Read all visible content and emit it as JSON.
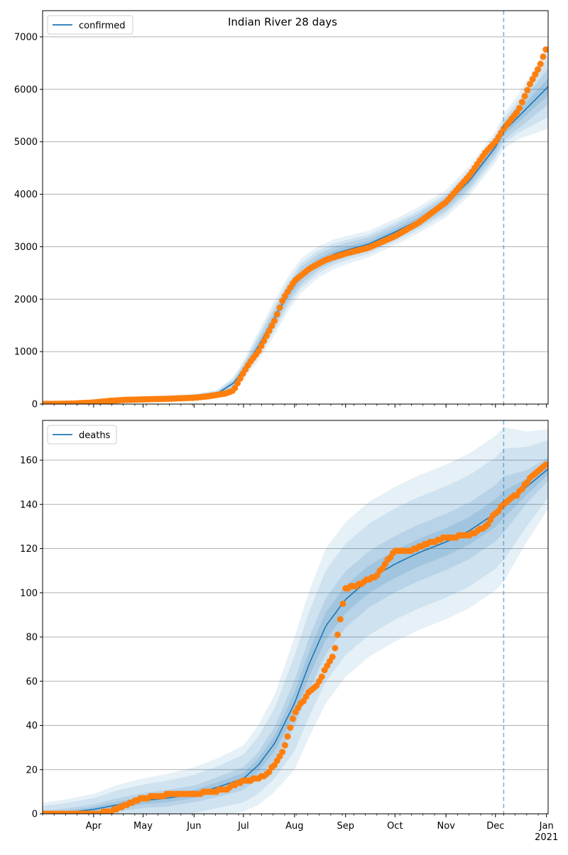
{
  "figure_title": "Indian River 28 days",
  "colors": {
    "model": "#1f77b4",
    "observed": "#ff7f0e",
    "band": "#1f77b4",
    "grid": "#b0b0b0",
    "forecast_line": "#1f77b4"
  },
  "chart_data": [
    {
      "type": "line",
      "panel": "top",
      "legend": [
        "confirmed"
      ],
      "legend_position": "top-left",
      "grid": "horizontal",
      "xlim": [
        "2020-03-01",
        "2021-01-02"
      ],
      "ylim": [
        0,
        7500
      ],
      "yticks": [
        0,
        1000,
        2000,
        3000,
        4000,
        5000,
        6000,
        7000
      ],
      "forecast_start": "2020-12-06",
      "series": [
        {
          "name": "confirmed",
          "kind": "model",
          "x": [
            "2020-03-01",
            "2020-03-15",
            "2020-04-01",
            "2020-05-01",
            "2020-06-01",
            "2020-06-15",
            "2020-06-25",
            "2020-07-01",
            "2020-07-10",
            "2020-07-20",
            "2020-07-28",
            "2020-08-05",
            "2020-08-15",
            "2020-08-25",
            "2020-09-01",
            "2020-09-15",
            "2020-10-01",
            "2020-10-15",
            "2020-11-01",
            "2020-11-15",
            "2020-12-01",
            "2020-12-06",
            "2020-12-15",
            "2021-01-02"
          ],
          "y": [
            5,
            10,
            40,
            100,
            140,
            200,
            400,
            650,
            1100,
            1650,
            2100,
            2450,
            2700,
            2860,
            2930,
            3050,
            3280,
            3500,
            3820,
            4250,
            4900,
            5200,
            5480,
            6050
          ],
          "bands": [
            [
              3,
              2
            ],
            [
              8,
              5
            ],
            [
              15,
              10
            ],
            [
              35,
              25
            ],
            [
              55,
              40
            ],
            [
              70,
              50
            ],
            [
              120,
              80
            ],
            [
              180,
              120
            ],
            [
              280,
              190
            ],
            [
              330,
              220
            ],
            [
              330,
              220
            ],
            [
              330,
              220
            ],
            [
              300,
              200
            ],
            [
              280,
              190
            ],
            [
              270,
              180
            ],
            [
              250,
              170
            ],
            [
              250,
              170
            ],
            [
              250,
              170
            ],
            [
              260,
              180
            ],
            [
              280,
              190
            ],
            [
              300,
              200
            ],
            [
              330,
              220
            ],
            [
              430,
              300
            ],
            [
              800,
              450
            ]
          ]
        },
        {
          "name": "",
          "kind": "observed",
          "x": [
            "2020-03-01",
            "2020-03-20",
            "2020-04-01",
            "2020-04-10",
            "2020-04-20",
            "2020-05-01",
            "2020-05-15",
            "2020-06-01",
            "2020-06-10",
            "2020-06-20",
            "2020-06-25",
            "2020-07-01",
            "2020-07-05",
            "2020-07-10",
            "2020-07-15",
            "2020-07-20",
            "2020-07-25",
            "2020-08-01",
            "2020-08-10",
            "2020-08-20",
            "2020-09-01",
            "2020-09-15",
            "2020-10-01",
            "2020-10-15",
            "2020-11-01",
            "2020-11-15",
            "2020-11-25",
            "2020-12-01",
            "2020-12-06",
            "2020-12-15",
            "2020-12-22",
            "2020-12-28",
            "2021-01-02"
          ],
          "y": [
            2,
            10,
            30,
            60,
            80,
            90,
            100,
            120,
            150,
            200,
            260,
            600,
            800,
            1000,
            1300,
            1600,
            2000,
            2350,
            2580,
            2750,
            2870,
            2980,
            3200,
            3450,
            3850,
            4350,
            4800,
            5000,
            5250,
            5600,
            6100,
            6450,
            6880
          ]
        }
      ]
    },
    {
      "type": "line",
      "panel": "bottom",
      "legend": [
        "deaths"
      ],
      "legend_position": "top-left",
      "grid": "horizontal",
      "xlim": [
        "2020-03-01",
        "2021-01-02"
      ],
      "ylim": [
        0,
        178
      ],
      "yticks": [
        0,
        20,
        40,
        60,
        80,
        100,
        120,
        140,
        160
      ],
      "xticks": [
        "Apr",
        "May",
        "Jun",
        "Jul",
        "Aug",
        "Sep",
        "Oct",
        "Nov",
        "Dec",
        "Jan"
      ],
      "xtick_year": "2021",
      "forecast_start": "2020-12-06",
      "series": [
        {
          "name": "deaths",
          "kind": "model",
          "x": [
            "2020-03-01",
            "2020-03-15",
            "2020-04-01",
            "2020-04-15",
            "2020-05-01",
            "2020-05-15",
            "2020-06-01",
            "2020-06-15",
            "2020-07-01",
            "2020-07-10",
            "2020-07-20",
            "2020-08-01",
            "2020-08-10",
            "2020-08-20",
            "2020-09-01",
            "2020-09-15",
            "2020-10-01",
            "2020-10-15",
            "2020-11-01",
            "2020-11-15",
            "2020-12-01",
            "2020-12-06",
            "2020-12-20",
            "2021-01-02"
          ],
          "y": [
            0,
            0.5,
            2,
            4,
            6,
            7,
            9,
            12,
            16,
            22,
            32,
            50,
            68,
            85,
            97,
            106,
            113,
            118,
            123,
            128,
            136,
            140,
            148,
            156
          ],
          "bands": [
            [
              5,
              2
            ],
            [
              6,
              2.5
            ],
            [
              7,
              3
            ],
            [
              9,
              4
            ],
            [
              10,
              4.5
            ],
            [
              11,
              5
            ],
            [
              12,
              5
            ],
            [
              13,
              6
            ],
            [
              15,
              7
            ],
            [
              18,
              8
            ],
            [
              22,
              10
            ],
            [
              30,
              14
            ],
            [
              33,
              16
            ],
            [
              35,
              17
            ],
            [
              35,
              17
            ],
            [
              35,
              17
            ],
            [
              35,
              17
            ],
            [
              35,
              17
            ],
            [
              35,
              17
            ],
            [
              35,
              17
            ],
            [
              35,
              17
            ],
            [
              35,
              17
            ],
            [
              25,
              10
            ],
            [
              18,
              7
            ]
          ]
        },
        {
          "name": "",
          "kind": "observed",
          "x": [
            "2020-03-01",
            "2020-04-01",
            "2020-04-10",
            "2020-04-20",
            "2020-05-01",
            "2020-05-10",
            "2020-05-20",
            "2020-06-01",
            "2020-06-10",
            "2020-06-20",
            "2020-07-01",
            "2020-07-10",
            "2020-07-15",
            "2020-07-20",
            "2020-07-25",
            "2020-08-01",
            "2020-08-05",
            "2020-08-10",
            "2020-08-15",
            "2020-08-20",
            "2020-08-25",
            "2020-09-01",
            "2020-09-10",
            "2020-09-20",
            "2020-10-01",
            "2020-10-10",
            "2020-10-20",
            "2020-11-01",
            "2020-11-15",
            "2020-11-25",
            "2020-12-01",
            "2020-12-06",
            "2020-12-15",
            "2020-12-22",
            "2021-01-02"
          ],
          "y": [
            0,
            0,
            1,
            4,
            7,
            8,
            9,
            9,
            10,
            11,
            15,
            16,
            18,
            22,
            28,
            45,
            50,
            55,
            58,
            66,
            72,
            102,
            104,
            108,
            119,
            119,
            122,
            125,
            126,
            130,
            136,
            140,
            145,
            152,
            159
          ]
        }
      ]
    }
  ]
}
